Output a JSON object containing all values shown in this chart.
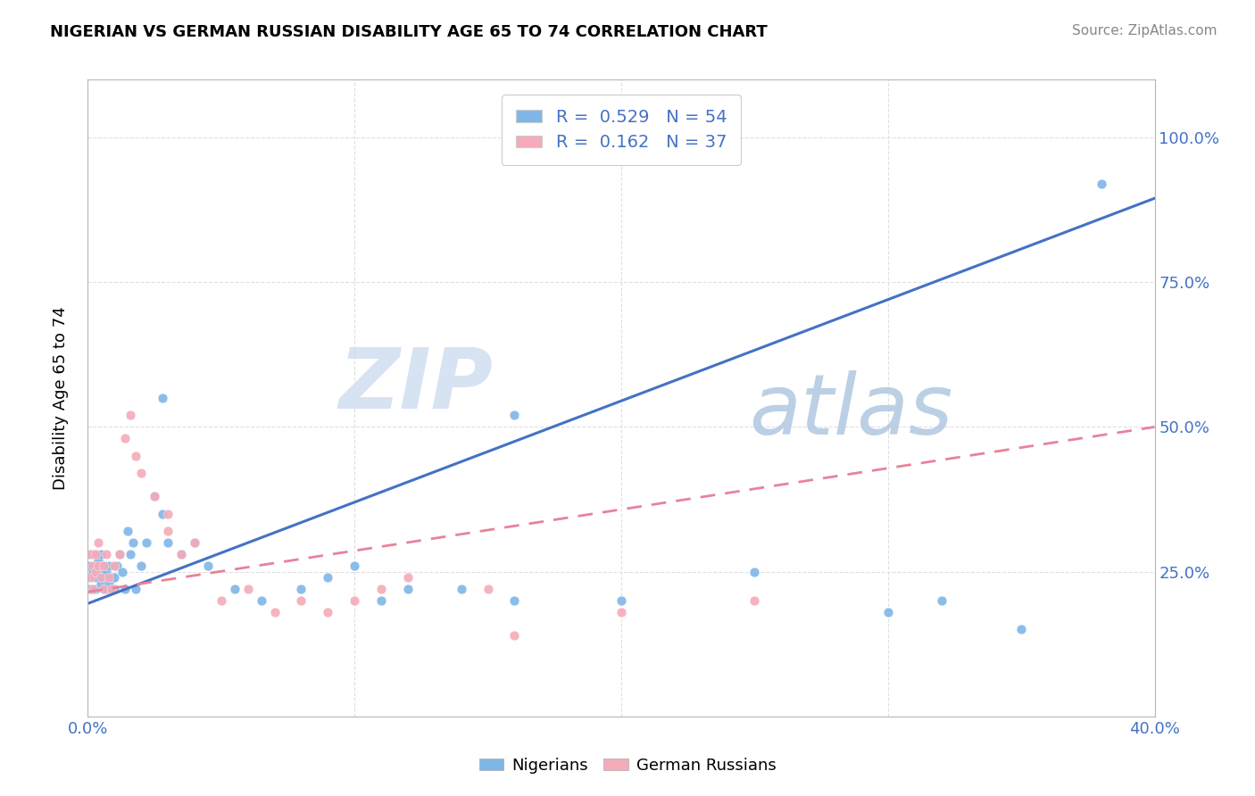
{
  "title": "NIGERIAN VS GERMAN RUSSIAN DISABILITY AGE 65 TO 74 CORRELATION CHART",
  "source": "Source: ZipAtlas.com",
  "ylabel": "Disability Age 65 to 74",
  "xlim": [
    0.0,
    0.4
  ],
  "ylim": [
    0.0,
    1.1
  ],
  "nigerian_color": "#7EB6E8",
  "german_color": "#F4ABBA",
  "nigerian_line_color": "#4472C4",
  "german_line_color": "#E8829A",
  "watermark_zip": "ZIP",
  "watermark_atlas": "atlas",
  "background_color": "#FFFFFF",
  "grid_color": "#DDDDDD",
  "nigerian_x": [
    0.001,
    0.001,
    0.002,
    0.002,
    0.003,
    0.003,
    0.003,
    0.004,
    0.004,
    0.005,
    0.005,
    0.005,
    0.006,
    0.006,
    0.007,
    0.007,
    0.008,
    0.008,
    0.009,
    0.01,
    0.01,
    0.011,
    0.012,
    0.013,
    0.014,
    0.015,
    0.016,
    0.017,
    0.018,
    0.02,
    0.022,
    0.025,
    0.028,
    0.03,
    0.035,
    0.04,
    0.045,
    0.055,
    0.065,
    0.08,
    0.09,
    0.1,
    0.11,
    0.12,
    0.14,
    0.16,
    0.2,
    0.25,
    0.3,
    0.32,
    0.35,
    0.38,
    0.028,
    0.16
  ],
  "nigerian_y": [
    0.26,
    0.22,
    0.25,
    0.28,
    0.24,
    0.26,
    0.22,
    0.24,
    0.27,
    0.23,
    0.25,
    0.28,
    0.24,
    0.26,
    0.22,
    0.25,
    0.23,
    0.26,
    0.24,
    0.22,
    0.24,
    0.26,
    0.28,
    0.25,
    0.22,
    0.32,
    0.28,
    0.3,
    0.22,
    0.26,
    0.3,
    0.38,
    0.35,
    0.3,
    0.28,
    0.3,
    0.26,
    0.22,
    0.2,
    0.22,
    0.24,
    0.26,
    0.2,
    0.22,
    0.22,
    0.2,
    0.2,
    0.25,
    0.18,
    0.2,
    0.15,
    0.92,
    0.55,
    0.52
  ],
  "german_x": [
    0.001,
    0.001,
    0.002,
    0.002,
    0.003,
    0.003,
    0.004,
    0.004,
    0.005,
    0.006,
    0.006,
    0.007,
    0.008,
    0.009,
    0.01,
    0.012,
    0.014,
    0.016,
    0.018,
    0.02,
    0.025,
    0.03,
    0.035,
    0.04,
    0.05,
    0.06,
    0.07,
    0.08,
    0.09,
    0.1,
    0.11,
    0.12,
    0.15,
    0.2,
    0.25,
    0.16,
    0.03
  ],
  "german_y": [
    0.24,
    0.28,
    0.22,
    0.26,
    0.25,
    0.28,
    0.3,
    0.26,
    0.24,
    0.22,
    0.26,
    0.28,
    0.24,
    0.22,
    0.26,
    0.28,
    0.48,
    0.52,
    0.45,
    0.42,
    0.38,
    0.32,
    0.28,
    0.3,
    0.2,
    0.22,
    0.18,
    0.2,
    0.18,
    0.2,
    0.22,
    0.24,
    0.22,
    0.18,
    0.2,
    0.14,
    0.35
  ],
  "nig_line_x0": 0.0,
  "nig_line_y0": 0.195,
  "nig_line_x1": 0.4,
  "nig_line_y1": 0.895,
  "ger_line_x0": 0.0,
  "ger_line_y0": 0.215,
  "ger_line_x1": 0.4,
  "ger_line_y1": 0.5
}
